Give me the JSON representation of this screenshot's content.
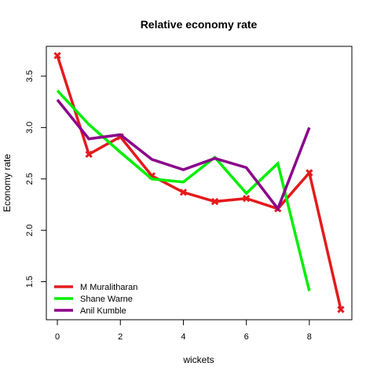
{
  "chart_data": {
    "type": "line",
    "title": "Relative economy rate",
    "xlabel": "wickets",
    "ylabel": "Economy rate",
    "xlim": [
      -0.35,
      9.35
    ],
    "ylim": [
      1.13,
      3.79
    ],
    "x_ticks": [
      0,
      2,
      4,
      6,
      8
    ],
    "y_ticks": [
      1.5,
      2.0,
      2.5,
      3.0,
      3.5
    ],
    "x_tick_labels": [
      "0",
      "2",
      "4",
      "6",
      "8"
    ],
    "y_tick_labels": [
      "1.5",
      "2.0",
      "2.5",
      "3.0",
      "3.5"
    ],
    "grid": false,
    "legend_position": "bottom-left",
    "series": [
      {
        "name": "M Muralitharan",
        "color": "#e41a1c",
        "marker": "x-filled",
        "x": [
          0,
          1,
          2,
          3,
          4,
          5,
          6,
          7,
          8,
          9
        ],
        "values": [
          3.7,
          2.74,
          2.91,
          2.53,
          2.37,
          2.28,
          2.31,
          2.21,
          2.56,
          1.23
        ]
      },
      {
        "name": "Shane Warne",
        "color": "#00ee00",
        "marker": "none",
        "x": [
          0,
          1,
          2,
          3,
          4,
          5,
          6,
          7,
          8
        ],
        "values": [
          3.36,
          3.03,
          2.76,
          2.5,
          2.47,
          2.71,
          2.36,
          2.65,
          1.41
        ]
      },
      {
        "name": "Anil Kumble",
        "color": "#8b008b",
        "marker": "none",
        "x": [
          0,
          1,
          2,
          3,
          4,
          5,
          6,
          7,
          8
        ],
        "values": [
          3.27,
          2.89,
          2.93,
          2.69,
          2.59,
          2.7,
          2.61,
          2.21,
          3.0
        ]
      }
    ]
  }
}
